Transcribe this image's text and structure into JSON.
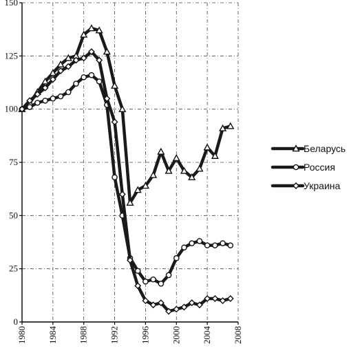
{
  "chart_data": {
    "type": "line",
    "title": "",
    "xlabel": "",
    "ylabel": "",
    "xlim": [
      1980,
      2008
    ],
    "ylim": [
      0,
      150
    ],
    "x_ticks": [
      1980,
      1984,
      1988,
      1992,
      1996,
      2000,
      2004,
      2008
    ],
    "y_ticks": [
      0,
      25,
      50,
      75,
      100,
      125,
      150
    ],
    "x_tick_labels": [
      "1980",
      "1984",
      "1988",
      "1992",
      "1996",
      "2000",
      "2004",
      "2008"
    ],
    "y_tick_labels": [
      "0",
      "25",
      "50",
      "75",
      "100",
      "125",
      "150"
    ],
    "grid": true,
    "legend_position": "right",
    "series": [
      {
        "name": "Беларусь",
        "marker": "triangle",
        "color": "#1a1a1a",
        "x": [
          1980,
          1981,
          1982,
          1983,
          1984,
          1985,
          1986,
          1987,
          1988,
          1989,
          1990,
          1991,
          1992,
          1993,
          1994,
          1995,
          1996,
          1997,
          1998,
          1999,
          2000,
          2001,
          2002,
          2003,
          2004,
          2005,
          2006,
          2007
        ],
        "y": [
          100,
          103,
          108,
          113,
          117,
          121,
          124,
          125,
          135,
          138,
          137,
          127,
          111,
          100,
          56,
          62,
          64,
          69,
          80,
          71,
          77,
          71,
          68,
          72,
          82,
          78,
          91,
          92
        ]
      },
      {
        "name": "Россия",
        "marker": "circle",
        "color": "#1a1a1a",
        "x": [
          1980,
          1981,
          1982,
          1983,
          1984,
          1985,
          1986,
          1987,
          1988,
          1989,
          1990,
          1991,
          1992,
          1993,
          1994,
          1995,
          1996,
          1997,
          1998,
          1999,
          2000,
          2001,
          2002,
          2003,
          2004,
          2005,
          2006,
          2007
        ],
        "y": [
          100,
          101,
          103,
          104,
          105,
          106,
          108,
          112,
          115,
          116,
          113,
          102,
          68,
          50,
          30,
          24,
          19,
          20,
          18,
          22,
          30,
          35,
          37,
          38,
          36,
          36,
          37,
          36
        ]
      },
      {
        "name": "Украина",
        "marker": "diamond",
        "color": "#1a1a1a",
        "x": [
          1980,
          1981,
          1982,
          1983,
          1984,
          1985,
          1986,
          1987,
          1988,
          1989,
          1990,
          1991,
          1992,
          1993,
          1994,
          1995,
          1996,
          1997,
          1998,
          1999,
          2000,
          2001,
          2002,
          2003,
          2004,
          2005,
          2006,
          2007
        ],
        "y": [
          100,
          104,
          107,
          110,
          114,
          118,
          120,
          123,
          124,
          127,
          123,
          105,
          94,
          60,
          29,
          17,
          10,
          8,
          9,
          5,
          6,
          7,
          9,
          8,
          11,
          11,
          10,
          11
        ]
      }
    ]
  }
}
